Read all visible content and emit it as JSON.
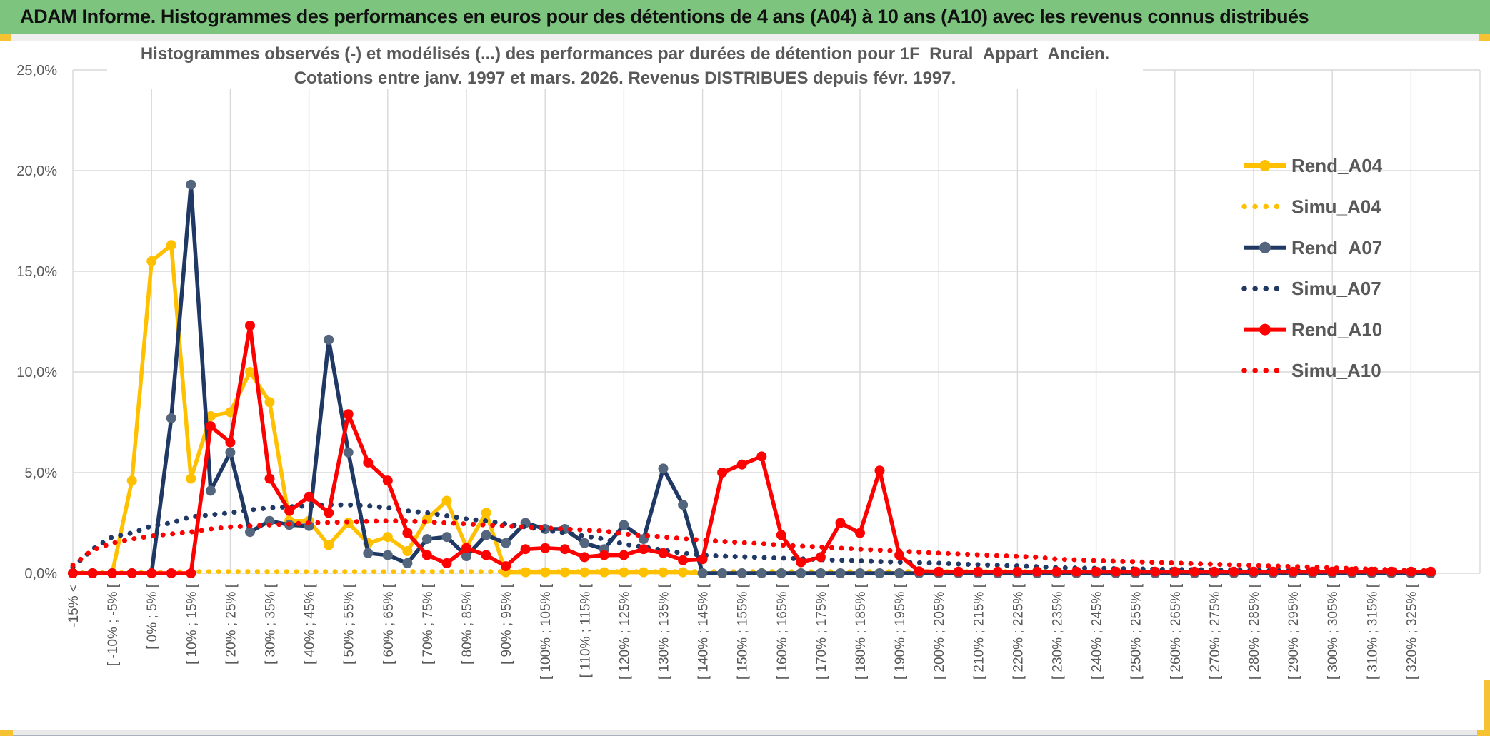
{
  "banner": {
    "title": "ADAM Informe. Histogrammes des performances en euros pour des détentions de 4 ans (A04) à 10 ans (A10) avec les revenus connus distribués"
  },
  "chart_data": {
    "type": "line",
    "title_line1": "Histogrammes observés (-) et modélisés (...) des performances par durées de détention pour 1F_Rural_Appart_Ancien.",
    "title_line2": "Cotations entre janv. 1997 et mars. 2026. Revenus DISTRIBUES depuis févr. 1997.",
    "ylabel": "",
    "xlabel": "",
    "ylim": [
      0,
      25
    ],
    "y_ticks": [
      "25,0%",
      "20,0%",
      "15,0%",
      "10,0%",
      "5,0%",
      "0,0%"
    ],
    "n_categories": 70,
    "label_stride": 2,
    "x_labels": [
      "-15% <",
      "[ -10% ; -5% [",
      "[ 0% ; 5% [",
      "[ 10% ; 15% [",
      "[ 20% ; 25% [",
      "[ 30% ; 35% [",
      "[ 40% ; 45% [",
      "[ 50% ; 55% [",
      "[ 60% ; 65% [",
      "[ 70% ; 75% [",
      "[ 80% ; 85% [",
      "[ 90% ; 95% [",
      "[ 100% ; 105% [",
      "[ 110% ; 115% [",
      "[ 120% ; 125% [",
      "[ 130% ; 135% [",
      "[ 140% ; 145% [",
      "[ 150% ; 155% [",
      "[ 160% ; 165% [",
      "[ 170% ; 175% [",
      "[ 180% ; 185% [",
      "[ 190% ; 195% [",
      "[ 200% ; 205% [",
      "[ 210% ; 215% [",
      "[ 220% ; 225% [",
      "[ 230% ; 235% [",
      "[ 240% ; 245% [",
      "[ 250% ; 255% [",
      "[ 260% ; 265% [",
      "[ 270% ; 275% [",
      "[ 280% ; 285% [",
      "[ 290% ; 295% [",
      "[ 300% ; 305% [",
      "[ 310% ; 315% [",
      "[ 320% ; 325% ["
    ],
    "grid": {
      "h_step_pct": 5,
      "v_every_categories": 4,
      "grid_color": "#d9d9d9"
    },
    "legend_position": "right",
    "series": [
      {
        "name": "Rend_A04",
        "style": "solid",
        "color": "#FFC000",
        "marker": "#FFC000",
        "values": [
          0,
          0,
          0,
          4.6,
          15.5,
          16.3,
          4.7,
          7.8,
          8,
          10,
          8.5,
          2.6,
          2.6,
          1.4,
          2.5,
          1.5,
          1.8,
          1.1,
          2.7,
          3.6,
          1.3,
          3,
          0.05,
          0.05,
          0.05,
          0.05,
          0.05,
          0.05,
          0.05,
          0.05,
          0.05,
          0.05,
          0,
          0,
          0,
          0,
          0,
          0,
          0,
          0,
          0,
          0,
          0,
          0,
          0,
          0,
          0,
          0,
          0,
          0,
          0,
          0,
          0,
          0,
          0,
          0,
          0,
          0,
          0,
          0,
          0,
          0,
          0,
          0,
          0,
          0,
          0,
          0,
          0,
          0
        ]
      },
      {
        "name": "Simu_A04",
        "style": "dotted",
        "color": "#FFC000",
        "values": [
          0.02,
          0.02,
          0.02,
          0.03,
          0.05,
          0.06,
          0.08,
          0.08,
          0.08,
          0.08,
          0.08,
          0.08,
          0.08,
          0.08,
          0.08,
          0.08,
          0.08,
          0.08,
          0.08,
          0.08,
          0.08,
          0.08,
          0.08,
          0.08,
          0.08,
          0.08,
          0.08,
          0.08,
          0.08,
          0.08,
          0.08,
          0.08,
          0.08,
          0.08,
          0.08,
          0.08,
          0.08,
          0.08,
          0.08,
          0.08,
          0.08,
          0.08,
          0.08,
          0.08,
          0.08,
          0.08,
          0.08,
          0.08,
          0.08,
          0.08,
          0.06,
          0.06,
          0.06,
          0.06,
          0.06,
          0.06,
          0.06,
          0.06,
          0.06,
          0.06,
          0.06,
          0.06,
          0.06,
          0.06,
          0.06,
          0.06,
          0.06,
          0.06,
          0.06,
          0.06
        ]
      },
      {
        "name": "Rend_A07",
        "style": "solid",
        "color": "#1F3864",
        "marker": "#54657E",
        "values": [
          0,
          0,
          0,
          0,
          0,
          7.7,
          19.3,
          4.1,
          6,
          2.05,
          2.6,
          2.4,
          2.35,
          11.6,
          6,
          1,
          0.9,
          0.5,
          1.7,
          1.8,
          0.85,
          1.9,
          1.5,
          2.5,
          2.2,
          2.2,
          1.5,
          1.2,
          2.4,
          1.7,
          5.2,
          3.4,
          0,
          0,
          0,
          0,
          0,
          0,
          0,
          0,
          0,
          0,
          0,
          0,
          0,
          0,
          0,
          0,
          0,
          0,
          0,
          0,
          0,
          0,
          0,
          0,
          0,
          0,
          0,
          0,
          0,
          0,
          0,
          0,
          0,
          0,
          0,
          0,
          0,
          0
        ]
      },
      {
        "name": "Simu_A07",
        "style": "dotted",
        "color": "#1F3864",
        "values": [
          0.3,
          1.2,
          1.8,
          2,
          2.35,
          2.5,
          2.8,
          2.9,
          3,
          3.15,
          3.25,
          3.3,
          3.35,
          3.4,
          3.4,
          3.35,
          3.25,
          3.1,
          3,
          2.85,
          2.7,
          2.6,
          2.45,
          2.3,
          2.15,
          2,
          1.85,
          1.7,
          1.45,
          1.3,
          1.15,
          1,
          0.9,
          0.85,
          0.82,
          0.78,
          0.75,
          0.72,
          0.68,
          0.65,
          0.62,
          0.58,
          0.55,
          0.52,
          0.5,
          0.46,
          0.43,
          0.4,
          0.37,
          0.33,
          0.28,
          0.26,
          0.25,
          0.23,
          0.22,
          0.2,
          0.19,
          0.18,
          0.17,
          0.16,
          0.15,
          0.14,
          0.13,
          0.12,
          0.11,
          0.1,
          0.1,
          0.09,
          0.09,
          0.08
        ]
      },
      {
        "name": "Rend_A10",
        "style": "solid",
        "color": "#FF0000",
        "marker": "#FF0000",
        "values": [
          0,
          0,
          0,
          0,
          0,
          0,
          0,
          7.3,
          6.5,
          12.3,
          4.7,
          3.1,
          3.8,
          3,
          7.9,
          5.5,
          4.6,
          2,
          0.9,
          0.5,
          1.25,
          0.9,
          0.35,
          1.2,
          1.25,
          1.2,
          0.8,
          0.9,
          0.9,
          1.2,
          1,
          0.65,
          0.7,
          5,
          5.4,
          5.8,
          1.9,
          0.55,
          0.8,
          2.5,
          2,
          5.1,
          0.9,
          0.1,
          0.08,
          0.08,
          0.08,
          0.08,
          0.08,
          0.08,
          0.08,
          0.08,
          0.08,
          0.08,
          0.08,
          0.08,
          0.08,
          0.08,
          0.08,
          0.08,
          0.08,
          0.08,
          0.08,
          0.08,
          0.08,
          0.08,
          0.08,
          0.08,
          0.08,
          0.08
        ]
      },
      {
        "name": "Simu_A10",
        "style": "dotted",
        "color": "#FF0000",
        "values": [
          0.4,
          1.15,
          1.5,
          1.7,
          1.85,
          1.95,
          2.05,
          2.2,
          2.3,
          2.35,
          2.4,
          2.45,
          2.5,
          2.52,
          2.55,
          2.58,
          2.6,
          2.6,
          2.55,
          2.5,
          2.45,
          2.4,
          2.35,
          2.3,
          2.25,
          2.2,
          2.15,
          2.1,
          1.95,
          1.88,
          1.8,
          1.72,
          1.65,
          1.58,
          1.52,
          1.47,
          1.4,
          1.35,
          1.3,
          1.25,
          1.2,
          1.15,
          1.1,
          1.05,
          1,
          0.96,
          0.92,
          0.88,
          0.84,
          0.8,
          0.7,
          0.67,
          0.63,
          0.6,
          0.57,
          0.54,
          0.51,
          0.48,
          0.45,
          0.42,
          0.39,
          0.36,
          0.33,
          0.3,
          0.27,
          0.24,
          0.21,
          0.18,
          0.15,
          0.12
        ]
      }
    ]
  },
  "colors": {
    "banner_green": "#7dc47e",
    "gold_accent": "#f4c233",
    "axis_text": "#595959",
    "grid": "#d9d9d9"
  }
}
